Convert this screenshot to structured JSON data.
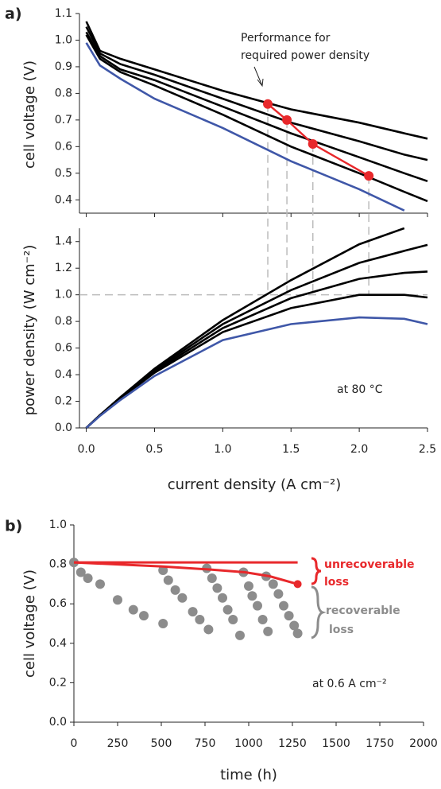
{
  "panel_labels": [
    "a)",
    "b)"
  ],
  "chart_data": [
    {
      "type": "line",
      "y_label": "cell voltage (V)",
      "annotation": [
        "Performance for",
        "required power density"
      ],
      "x": [
        0,
        0.1,
        0.25,
        0.5,
        1.0,
        1.5,
        2.0,
        2.33,
        2.5
      ],
      "series": [
        {
          "color": "#000000",
          "values": [
            1.07,
            0.96,
            0.93,
            0.89,
            0.81,
            0.74,
            0.69,
            0.65,
            0.63
          ]
        },
        {
          "color": "#000000",
          "values": [
            1.05,
            0.95,
            0.91,
            0.87,
            0.78,
            0.69,
            0.62,
            0.57,
            0.55
          ]
        },
        {
          "color": "#000000",
          "values": [
            1.03,
            0.94,
            0.89,
            0.85,
            0.75,
            0.65,
            0.56,
            0.5,
            0.47
          ]
        },
        {
          "color": "#000000",
          "values": [
            1.02,
            0.93,
            0.88,
            0.83,
            0.72,
            0.6,
            0.5,
            0.43,
            0.395
          ]
        },
        {
          "color": "#3f57a8",
          "values": [
            0.99,
            0.905,
            0.855,
            0.78,
            0.67,
            0.545,
            0.44,
            0.36,
            null
          ]
        }
      ],
      "highlight": {
        "color": "#e8282b",
        "x": [
          1.33,
          1.47,
          1.66,
          2.07
        ],
        "values": [
          0.76,
          0.7,
          0.61,
          0.49
        ]
      },
      "xlim": [
        -0.05,
        2.5
      ],
      "ylim": [
        0.35,
        1.1
      ],
      "yticks": [
        0.4,
        0.5,
        0.6,
        0.7,
        0.8,
        0.9,
        {
          "value": 1.0,
          "label": "1.0"
        },
        1.1
      ]
    },
    {
      "type": "line",
      "x_label": "current density (A cm⁻²)",
      "y_label": "power density (W cm⁻²)",
      "annotation": "at 80 °C",
      "x": [
        0,
        0.1,
        0.25,
        0.5,
        1.0,
        1.5,
        2.0,
        2.33,
        2.5
      ],
      "series": [
        {
          "color": "#000000",
          "values": [
            0,
            0.096,
            0.23,
            0.445,
            0.81,
            1.11,
            1.38,
            1.5,
            null
          ]
        },
        {
          "color": "#000000",
          "values": [
            0,
            0.095,
            0.23,
            0.435,
            0.78,
            1.035,
            1.24,
            1.33,
            1.375
          ]
        },
        {
          "color": "#000000",
          "values": [
            0,
            0.094,
            0.22,
            0.425,
            0.75,
            0.975,
            1.12,
            1.165,
            1.175
          ]
        },
        {
          "color": "#000000",
          "values": [
            0,
            0.093,
            0.22,
            0.415,
            0.72,
            0.9,
            1.0,
            1.0,
            0.98
          ]
        },
        {
          "color": "#3f57a8",
          "values": [
            0,
            0.09,
            0.21,
            0.39,
            0.66,
            0.78,
            0.83,
            0.82,
            0.78
          ]
        }
      ],
      "reference_y": 1.0,
      "xlim": [
        -0.05,
        2.5
      ],
      "ylim": [
        0,
        1.5
      ],
      "xticks": [
        {
          "value": 0,
          "label": "0.0"
        },
        0.5,
        {
          "value": 1,
          "label": "1.0"
        },
        1.5,
        {
          "value": 2,
          "label": "2.0"
        },
        2.5
      ],
      "yticks": [
        {
          "value": 0,
          "label": "0.0"
        },
        0.2,
        0.4,
        0.6,
        0.8,
        {
          "value": 1,
          "label": "1.0"
        },
        1.2,
        1.4
      ]
    },
    {
      "type": "scatter",
      "x_label": "time (h)",
      "y_label": "cell voltage (V)",
      "annotations": {
        "unrecoverable": [
          "unrecoverable",
          "loss"
        ],
        "recoverable": [
          "recoverable",
          "loss"
        ],
        "condition": "at 0.6 A cm⁻²"
      },
      "series": [
        {
          "color": "#8c8c8c",
          "x": [
            0,
            40,
            80,
            150,
            250,
            340,
            400,
            510
          ],
          "values": [
            0.81,
            0.76,
            0.73,
            0.7,
            0.62,
            0.57,
            0.54,
            0.5
          ]
        },
        {
          "color": "#8c8c8c",
          "x": [
            510,
            540,
            580,
            620,
            680,
            720,
            770
          ],
          "values": [
            0.77,
            0.72,
            0.67,
            0.63,
            0.56,
            0.52,
            0.47
          ]
        },
        {
          "color": "#8c8c8c",
          "x": [
            760,
            790,
            820,
            850,
            880,
            910,
            950
          ],
          "values": [
            0.78,
            0.73,
            0.68,
            0.63,
            0.57,
            0.52,
            0.44
          ]
        },
        {
          "color": "#8c8c8c",
          "x": [
            970,
            1000,
            1020,
            1050,
            1080,
            1110
          ],
          "values": [
            0.76,
            0.69,
            0.64,
            0.59,
            0.52,
            0.46
          ]
        },
        {
          "color": "#8c8c8c",
          "x": [
            1100,
            1140,
            1170,
            1200,
            1230,
            1260,
            1280
          ],
          "values": [
            0.74,
            0.7,
            0.65,
            0.59,
            0.54,
            0.49,
            0.45
          ]
        }
      ],
      "lines": [
        {
          "color": "#e8282b",
          "x": [
            0,
            1280
          ],
          "values": [
            0.81,
            0.81
          ]
        },
        {
          "color": "#e8282b",
          "x": [
            0,
            500,
            760,
            980,
            1120,
            1280
          ],
          "values": [
            0.81,
            0.79,
            0.775,
            0.76,
            0.74,
            0.7
          ]
        }
      ],
      "xlim": [
        0,
        2000
      ],
      "ylim": [
        0,
        1.0
      ],
      "xticks": [
        0,
        250,
        500,
        750,
        1000,
        1250,
        1500,
        1750,
        2000
      ],
      "yticks": [
        {
          "value": 0,
          "label": "0.0"
        },
        0.2,
        0.4,
        0.6,
        0.8,
        {
          "value": 1,
          "label": "1.0"
        }
      ]
    }
  ]
}
